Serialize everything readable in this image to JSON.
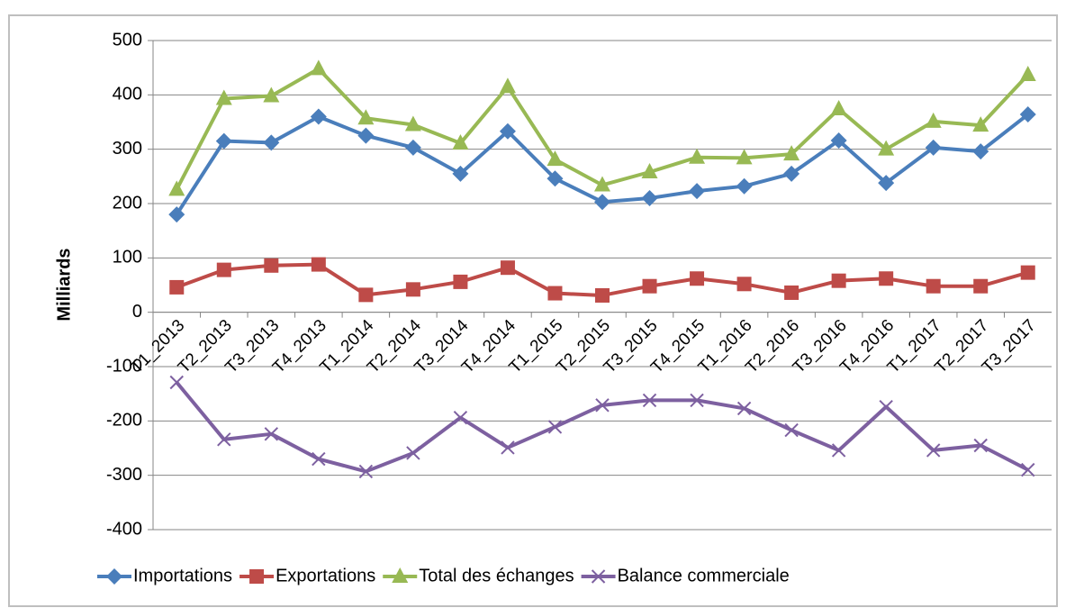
{
  "chart_data": {
    "type": "line",
    "y_label": "Milliards",
    "categories": [
      "T1_2013",
      "T2_2013",
      "T3_2013",
      "T4_2013",
      "T1_2014",
      "T2_2014",
      "T3_2014",
      "T4_2014",
      "T1_2015",
      "T2_2015",
      "T3_2015",
      "T4_2015",
      "T1_2016",
      "T2_2016",
      "T3_2016",
      "T4_2016",
      "T1_2017",
      "T2_2017",
      "T3_2017"
    ],
    "series": [
      {
        "name": "Importations",
        "color": "#4a7ebb",
        "marker": "diamond",
        "values": [
          180,
          315,
          312,
          360,
          325,
          303,
          255,
          333,
          246,
          203,
          210,
          223,
          232,
          255,
          316,
          238,
          303,
          296,
          364
        ]
      },
      {
        "name": "Exportations",
        "color": "#be4b48",
        "marker": "square",
        "values": [
          46,
          78,
          86,
          88,
          32,
          42,
          56,
          82,
          35,
          31,
          48,
          62,
          52,
          36,
          58,
          62,
          48,
          48,
          73
        ]
      },
      {
        "name": "Total des échanges",
        "color": "#98b954",
        "marker": "triangle",
        "values": [
          226,
          393,
          398,
          448,
          357,
          345,
          311,
          415,
          281,
          234,
          258,
          285,
          284,
          291,
          374,
          300,
          351,
          344,
          437
        ]
      },
      {
        "name": "Balance commerciale",
        "color": "#7d60a0",
        "marker": "x",
        "values": [
          -129,
          -234,
          -224,
          -270,
          -293,
          -259,
          -194,
          -249,
          -211,
          -171,
          -162,
          -162,
          -177,
          -217,
          -254,
          -174,
          -254,
          -245,
          -290
        ]
      }
    ],
    "ylim": [
      -400,
      500
    ],
    "yticks": [
      -400,
      -300,
      -200,
      -100,
      0,
      100,
      200,
      300,
      400,
      500
    ],
    "grid": true,
    "legend": "bottom"
  }
}
